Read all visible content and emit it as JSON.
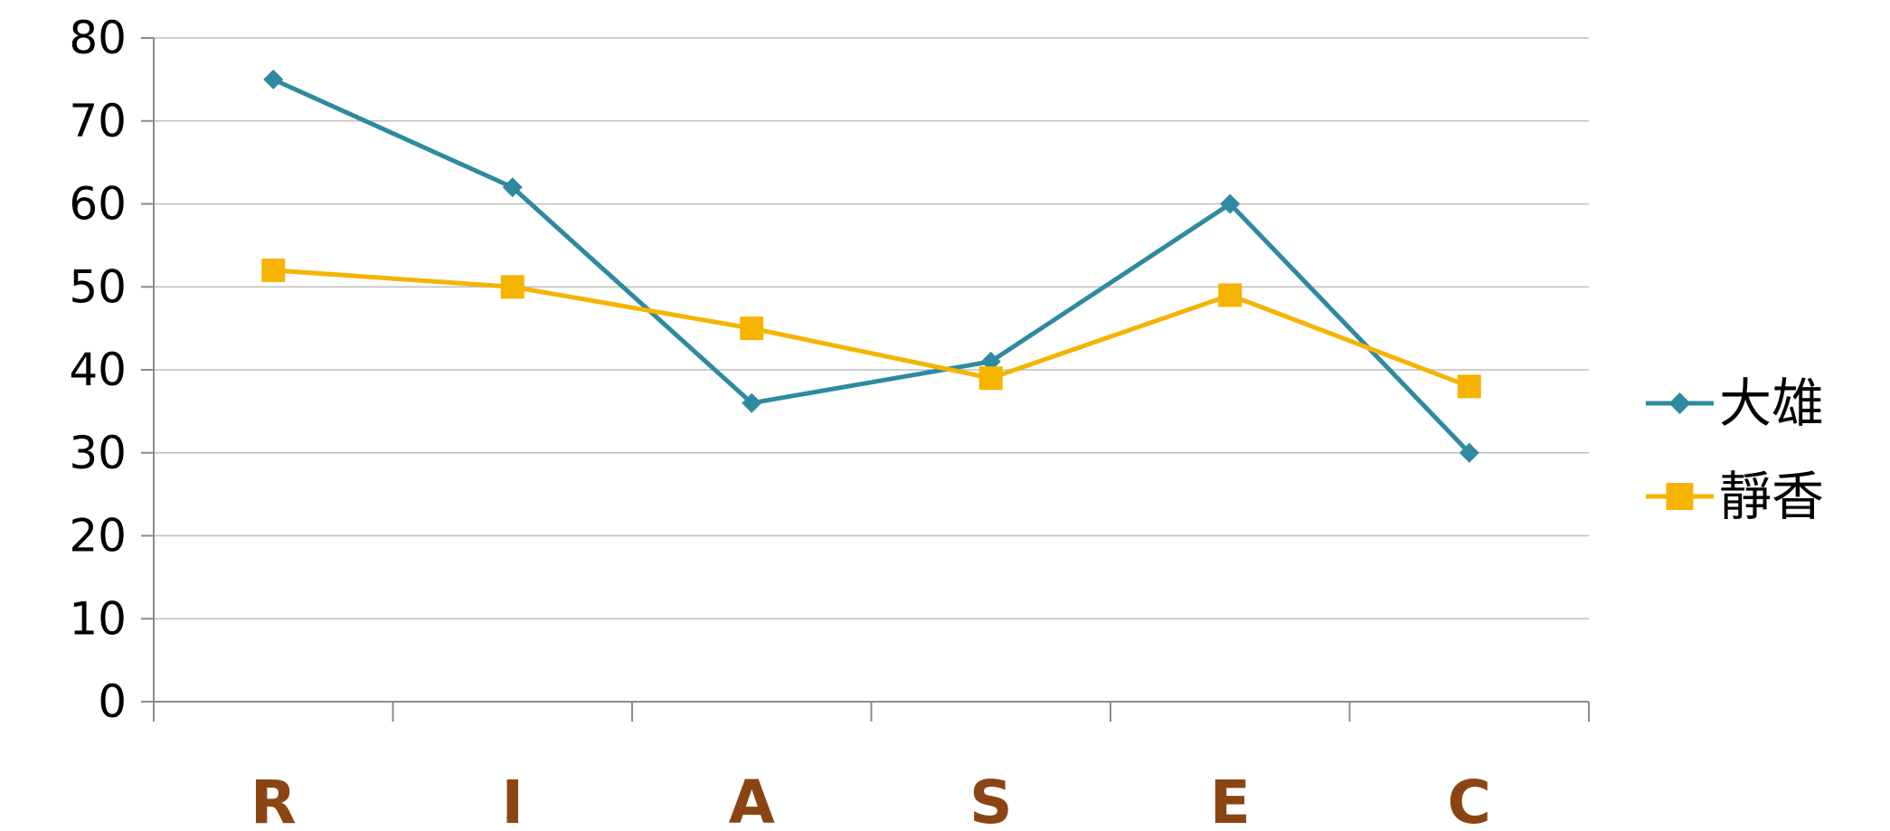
{
  "chart_data": {
    "type": "line",
    "categories": [
      "R",
      "I",
      "A",
      "S",
      "E",
      "C"
    ],
    "series": [
      {
        "name": "大雄",
        "color": "#2E8AA0",
        "marker": "diamond",
        "values": [
          75,
          62,
          36,
          41,
          60,
          30
        ]
      },
      {
        "name": "靜香",
        "color": "#F5B400",
        "marker": "square",
        "values": [
          52,
          50,
          45,
          39,
          49,
          38
        ]
      }
    ],
    "ylim": [
      0,
      80
    ],
    "yticks": [
      "0",
      "10",
      "20",
      "30",
      "40",
      "50",
      "60",
      "70",
      "80"
    ],
    "grid": true,
    "legend_position": "right",
    "tick_label_color": "#8B4513",
    "gridline_color": "#BFBFBF"
  }
}
